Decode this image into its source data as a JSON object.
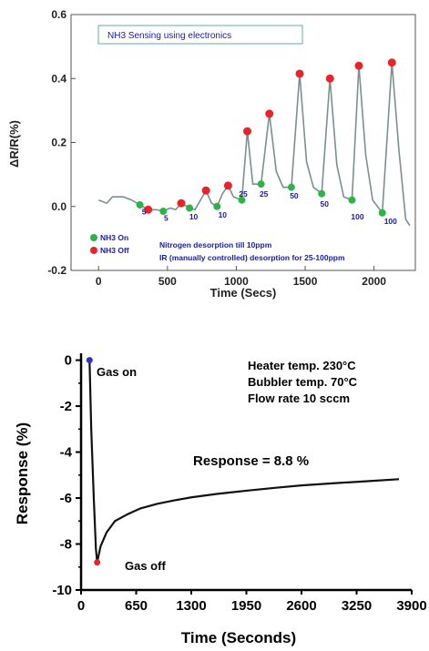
{
  "chart_data": [
    {
      "type": "line",
      "title": "NH3 Sensing using electronics",
      "xlabel": "Time (Secs)",
      "ylabel": "ΔR/R(%)",
      "xlim": [
        -200,
        2300
      ],
      "ylim": [
        -0.2,
        0.6
      ],
      "x_ticks": [
        0,
        500,
        1000,
        1500,
        2000
      ],
      "y_ticks": [
        -0.2,
        0.0,
        0.2,
        0.4,
        0.6
      ],
      "tick_labels_x": [
        "0",
        "500",
        "1000",
        "1500",
        "2000"
      ],
      "tick_labels_y": [
        "-0.2",
        "0.0",
        "0.2",
        "0.4",
        "0.6"
      ],
      "legend_position": "bottom-left",
      "legend": [
        {
          "name": "NH3 On",
          "color": "#2db34a"
        },
        {
          "name": "NH3 Off",
          "color": "#e8242b"
        }
      ],
      "annotations": [
        "Nitrogen desorption till 10ppm",
        "IR (manually controlled) desorption for 25-100ppm"
      ],
      "line_color": "#7a9090",
      "series_line": [
        [
          0,
          0.02
        ],
        [
          60,
          0.01
        ],
        [
          100,
          0.03
        ],
        [
          180,
          0.03
        ],
        [
          240,
          0.02
        ],
        [
          300,
          0.005
        ],
        [
          360,
          -0.01
        ],
        [
          420,
          -0.01
        ],
        [
          470,
          -0.015
        ],
        [
          520,
          -0.005
        ],
        [
          560,
          -0.01
        ],
        [
          600,
          0.01
        ],
        [
          660,
          -0.005
        ],
        [
          700,
          -0.01
        ],
        [
          740,
          0.02
        ],
        [
          780,
          0.05
        ],
        [
          820,
          0.01
        ],
        [
          860,
          0.0
        ],
        [
          900,
          0.04
        ],
        [
          940,
          0.065
        ],
        [
          980,
          0.03
        ],
        [
          1040,
          0.02
        ],
        [
          1080,
          0.235
        ],
        [
          1120,
          0.07
        ],
        [
          1180,
          0.07
        ],
        [
          1240,
          0.29
        ],
        [
          1290,
          0.11
        ],
        [
          1340,
          0.06
        ],
        [
          1400,
          0.06
        ],
        [
          1460,
          0.415
        ],
        [
          1510,
          0.14
        ],
        [
          1560,
          0.06
        ],
        [
          1620,
          0.04
        ],
        [
          1680,
          0.4
        ],
        [
          1730,
          0.13
        ],
        [
          1780,
          0.03
        ],
        [
          1840,
          0.02
        ],
        [
          1890,
          0.44
        ],
        [
          1940,
          0.16
        ],
        [
          1990,
          0.02
        ],
        [
          2060,
          -0.02
        ],
        [
          2130,
          0.45
        ],
        [
          2180,
          0.18
        ],
        [
          2230,
          -0.04
        ],
        [
          2260,
          -0.06
        ]
      ],
      "series_on": [
        [
          300,
          0.005
        ],
        [
          470,
          -0.015
        ],
        [
          660,
          -0.005
        ],
        [
          860,
          0.0
        ],
        [
          1040,
          0.02
        ],
        [
          1180,
          0.07
        ],
        [
          1400,
          0.06
        ],
        [
          1620,
          0.04
        ],
        [
          1840,
          0.02
        ],
        [
          2060,
          -0.02
        ]
      ],
      "series_off": [
        [
          360,
          -0.01
        ],
        [
          600,
          0.01
        ],
        [
          780,
          0.05
        ],
        [
          940,
          0.065
        ],
        [
          1080,
          0.235
        ],
        [
          1240,
          0.29
        ],
        [
          1460,
          0.415
        ],
        [
          1680,
          0.4
        ],
        [
          1890,
          0.44
        ],
        [
          2130,
          0.45
        ]
      ],
      "point_labels": [
        {
          "x": 330,
          "y": -0.025,
          "text": "5"
        },
        {
          "x": 490,
          "y": -0.045,
          "text": "5"
        },
        {
          "x": 690,
          "y": -0.04,
          "text": "10"
        },
        {
          "x": 900,
          "y": -0.035,
          "text": "10"
        },
        {
          "x": 1050,
          "y": 0.03,
          "text": "25"
        },
        {
          "x": 1200,
          "y": 0.03,
          "text": "25"
        },
        {
          "x": 1420,
          "y": 0.025,
          "text": "50"
        },
        {
          "x": 1640,
          "y": 0.0,
          "text": "50"
        },
        {
          "x": 1880,
          "y": -0.04,
          "text": "100"
        },
        {
          "x": 2120,
          "y": -0.055,
          "text": "100"
        }
      ]
    },
    {
      "type": "line",
      "title": "",
      "xlabel": "Time (Seconds)",
      "ylabel": "Response (%)",
      "xlim": [
        0,
        3900
      ],
      "ylim": [
        -10,
        0.5
      ],
      "x_ticks": [
        0,
        650,
        1300,
        1950,
        2600,
        3250,
        3900
      ],
      "y_ticks": [
        0,
        -2,
        -4,
        -6,
        -8,
        -10
      ],
      "tick_labels_x": [
        "0",
        "650",
        "1300",
        "1950",
        "2600",
        "3250",
        "3900"
      ],
      "tick_labels_y": [
        "0",
        "-2",
        "-4",
        "-6",
        "-8",
        "-10"
      ],
      "line_color": "#111111",
      "series_line": [
        [
          100,
          0
        ],
        [
          120,
          -3
        ],
        [
          150,
          -6
        ],
        [
          175,
          -8.2
        ],
        [
          190,
          -8.8
        ],
        [
          230,
          -8.1
        ],
        [
          300,
          -7.5
        ],
        [
          400,
          -7.0
        ],
        [
          550,
          -6.7
        ],
        [
          700,
          -6.45
        ],
        [
          900,
          -6.25
        ],
        [
          1100,
          -6.1
        ],
        [
          1300,
          -5.97
        ],
        [
          1600,
          -5.82
        ],
        [
          1950,
          -5.68
        ],
        [
          2300,
          -5.55
        ],
        [
          2600,
          -5.45
        ],
        [
          3000,
          -5.35
        ],
        [
          3400,
          -5.26
        ],
        [
          3750,
          -5.18
        ]
      ],
      "markers": [
        {
          "x": 100,
          "y": 0,
          "color": "#3030c8"
        },
        {
          "x": 190,
          "y": -8.8,
          "color": "#e8242b"
        }
      ],
      "annotations": {
        "gas_on": "Gas on",
        "gas_off": "Gas off",
        "heater": "Heater temp. 230°C",
        "bubbler": "Bubbler temp. 70°C",
        "flow": "Flow rate 10 sccm",
        "response": "Response = 8.8 %"
      }
    }
  ]
}
